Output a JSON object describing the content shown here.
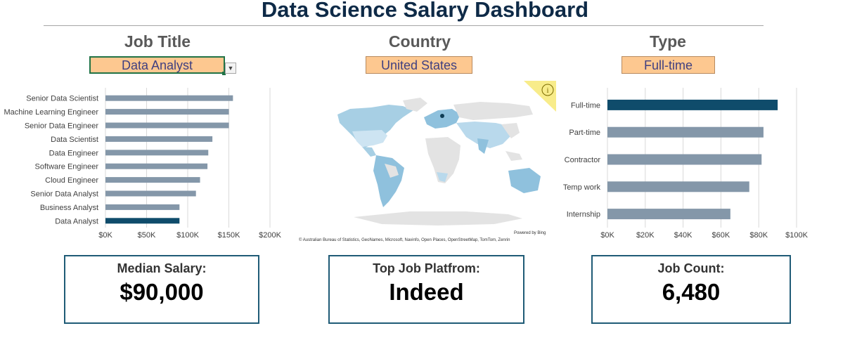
{
  "header": {
    "title": "Data Science Salary Dashboard"
  },
  "filters": {
    "job_title": {
      "heading": "Job Title",
      "value": "Data Analyst"
    },
    "country": {
      "heading": "Country",
      "value": "United States"
    },
    "type": {
      "heading": "Type",
      "value": "Full-time"
    }
  },
  "map": {
    "credit_top": "Powered by Bing",
    "credit_bottom": "© Australian Bureau of Statistics, GeoNames, Microsoft, Navinfo, Open Places, OpenStreetMap, TomTom, Zenrin",
    "info_icon": "info-icon"
  },
  "kpis": {
    "median_salary": {
      "label": "Median Salary:",
      "value": "$90,000"
    },
    "top_platform": {
      "label": "Top Job Platfrom:",
      "value": "Indeed"
    },
    "job_count": {
      "label": "Job Count:",
      "value": "6,480"
    }
  },
  "chart_data": [
    {
      "type": "bar",
      "orientation": "horizontal",
      "categories": [
        "Senior Data Scientist",
        "Machine Learning Engineer",
        "Senior Data Engineer",
        "Data Scientist",
        "Data Engineer",
        "Software Engineer",
        "Cloud Engineer",
        "Senior Data Analyst",
        "Business Analyst",
        "Data Analyst"
      ],
      "values": [
        155000,
        150000,
        150000,
        130000,
        125000,
        124000,
        115000,
        110000,
        90000,
        90000
      ],
      "highlight": "Data Analyst",
      "x_ticks": [
        "$0K",
        "$50K",
        "$100K",
        "$150K",
        "$200K"
      ],
      "xlim": [
        0,
        200000
      ],
      "grid": true,
      "colors": {
        "bar": "#8497a9",
        "highlight": "#0f4c6b"
      }
    },
    {
      "type": "bar",
      "orientation": "horizontal",
      "categories": [
        "Full-time",
        "Part-time",
        "Contractor",
        "Temp work",
        "Internship"
      ],
      "values": [
        90000,
        82500,
        81500,
        75000,
        65000
      ],
      "highlight": "Full-time",
      "x_ticks": [
        "$0K",
        "$20K",
        "$40K",
        "$60K",
        "$80K",
        "$100K"
      ],
      "xlim": [
        0,
        100000
      ],
      "grid": true,
      "colors": {
        "bar": "#8497a9",
        "highlight": "#0f4c6b"
      }
    }
  ]
}
